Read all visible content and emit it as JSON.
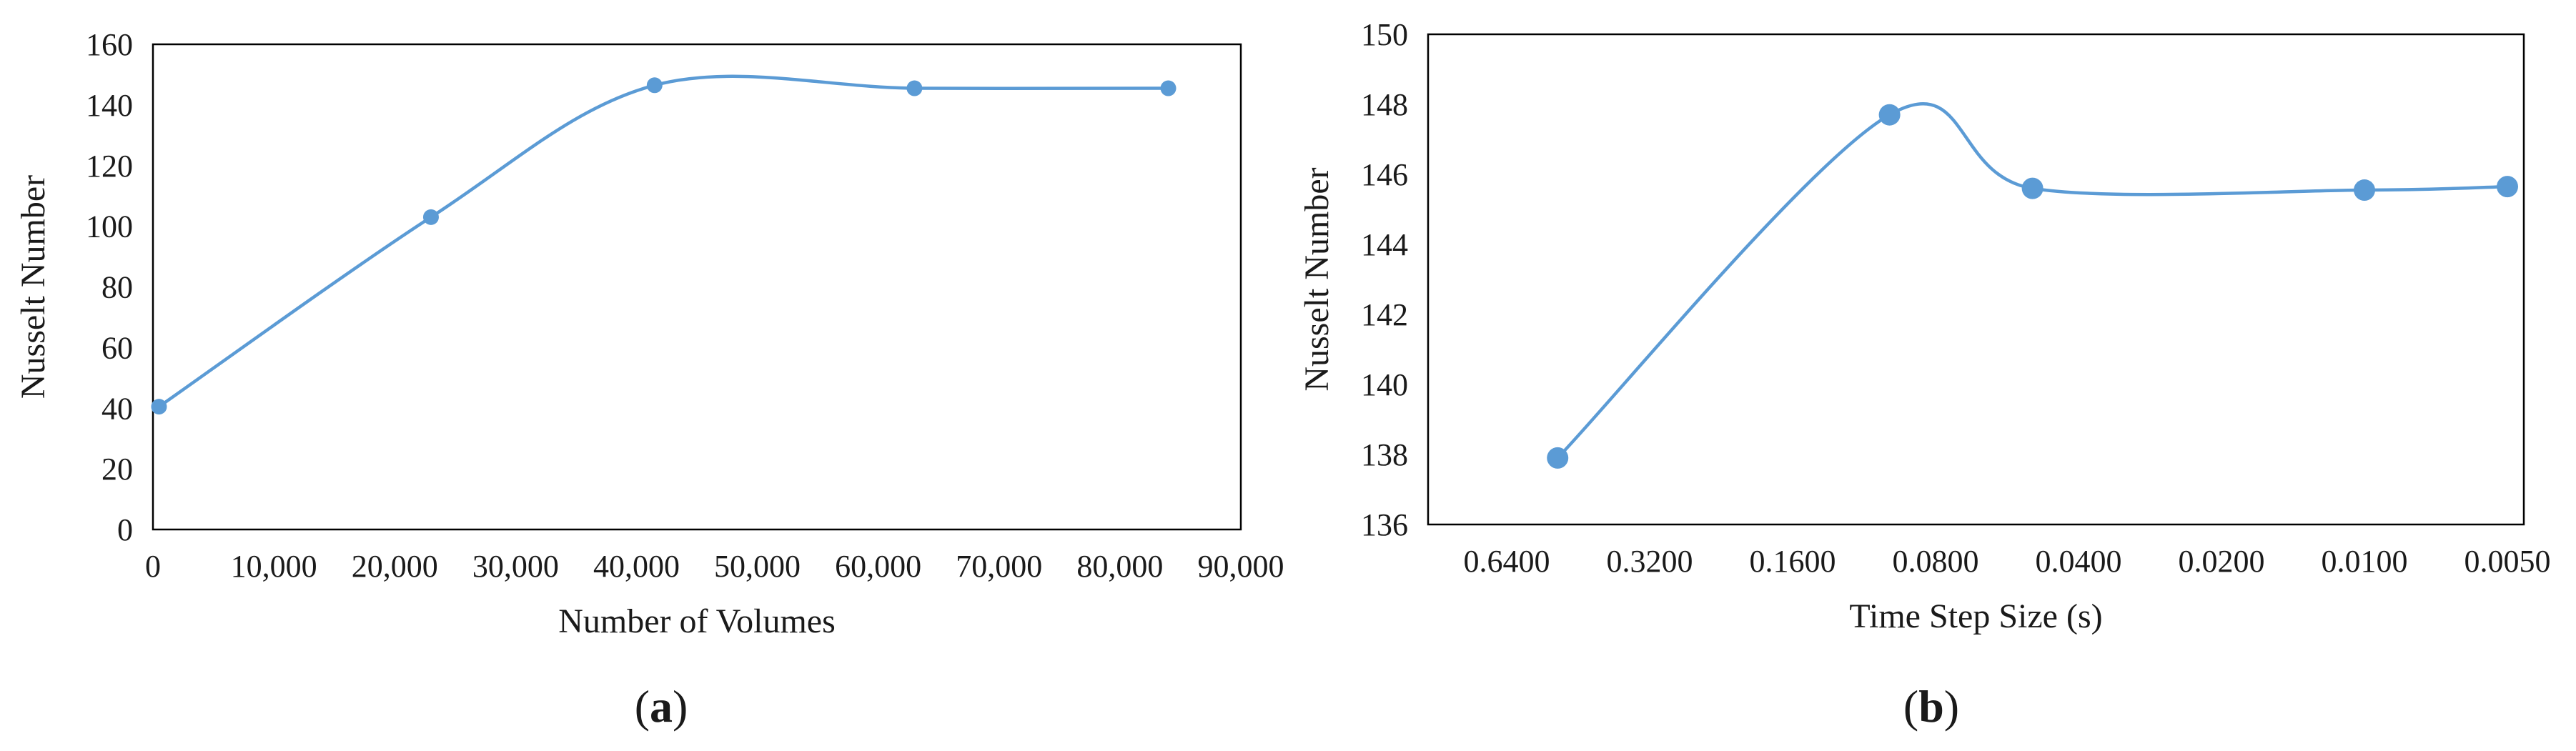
{
  "chart_data": [
    {
      "type": "line",
      "panel_label": "a",
      "xlabel": "Number of Volumes",
      "ylabel": "Nusselt Number",
      "xlim": [
        0,
        90000
      ],
      "ylim": [
        0,
        160
      ],
      "x_ticks": [
        0,
        10000,
        20000,
        30000,
        40000,
        50000,
        60000,
        70000,
        80000,
        90000
      ],
      "x_tick_labels": [
        "0",
        "10,000",
        "20,000",
        "30,000",
        "40,000",
        "50,000",
        "60,000",
        "70,000",
        "80,000",
        "90,000"
      ],
      "y_ticks": [
        0,
        20,
        40,
        60,
        80,
        100,
        120,
        140,
        160
      ],
      "y_tick_labels": [
        "0",
        "20",
        "40",
        "60",
        "80",
        "100",
        "120",
        "140",
        "160"
      ],
      "grid": false,
      "smooth": true,
      "series": [
        {
          "x": [
            500,
            23000,
            41500,
            63000,
            84000
          ],
          "y": [
            40.5,
            103,
            146.5,
            145.5,
            145.5
          ]
        }
      ]
    },
    {
      "type": "line",
      "panel_label": "b",
      "xlabel": "Time Step Size (s)",
      "ylabel": "Nusselt Number",
      "x_scale": "log2-reversed",
      "categories": [
        "0.6400",
        "0.3200",
        "0.1600",
        "0.0800",
        "0.0400",
        "0.0200",
        "0.0100",
        "0.0050"
      ],
      "ylim": [
        136,
        150
      ],
      "y_ticks": [
        136,
        138,
        140,
        142,
        144,
        146,
        148,
        150
      ],
      "y_tick_labels": [
        "136",
        "138",
        "140",
        "142",
        "144",
        "146",
        "148",
        "150"
      ],
      "grid": false,
      "smooth": true,
      "series": [
        {
          "x": [
            0.5,
            0.1,
            0.05,
            0.01,
            0.005
          ],
          "y": [
            137.9,
            147.7,
            145.6,
            145.55,
            145.65
          ]
        }
      ]
    }
  ],
  "colors": {
    "series": "#5b9bd5",
    "axes": "#000000"
  }
}
